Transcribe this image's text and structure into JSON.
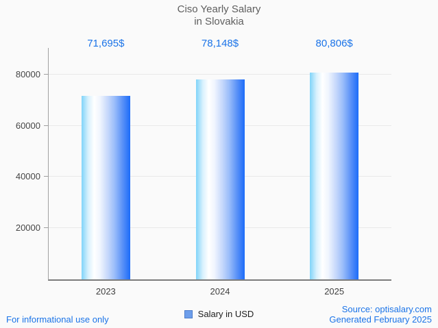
{
  "title": {
    "line1": "Ciso Yearly Salary",
    "line2": "in Slovakia"
  },
  "chart_data": {
    "type": "bar",
    "title": "Ciso Yearly Salary in Slovakia",
    "categories": [
      "2023",
      "2024",
      "2025"
    ],
    "series": [
      {
        "name": "Salary in USD",
        "values": [
          71695,
          78148,
          80806
        ]
      }
    ],
    "value_labels": [
      "71,695$",
      "78,148$",
      "80,806$"
    ],
    "xlabel": "",
    "ylabel": "",
    "ylim": [
      0,
      90400
    ],
    "yticks": [
      20000,
      40000,
      60000,
      80000
    ],
    "grid": true,
    "legend_position": "bottom",
    "bar_gradient": [
      "#7fd4f9",
      "#ffffff",
      "#1c6cf9"
    ]
  },
  "legend": {
    "label": "Salary in USD"
  },
  "footer": {
    "left": "For informational use only",
    "source": "Source: optisalary.com",
    "generated": "Generated February 2025"
  },
  "colors": {
    "accent_text": "#1a73e8",
    "title_text": "#5e5e5e",
    "axis_text": "#454545",
    "gridline": "#e9e9e9",
    "legend_fill": "#6d9eeb",
    "legend_border": "#4d7cc9"
  }
}
